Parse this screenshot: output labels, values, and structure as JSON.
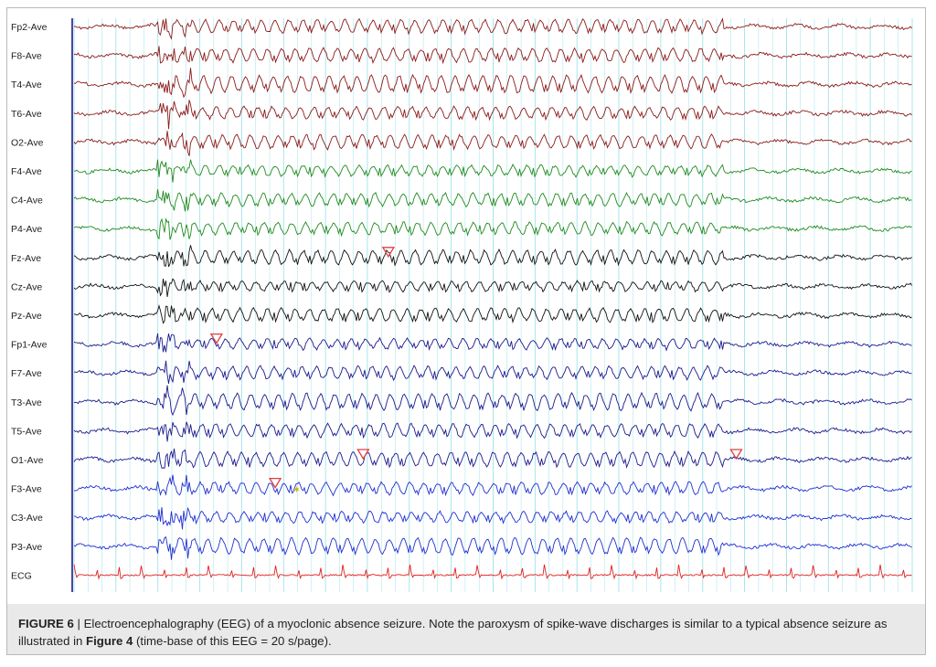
{
  "figure": {
    "caption": {
      "label": "FIGURE 6",
      "separator": " | ",
      "text_before": "Electroencephalography (EEG) of a myoclonic absence seizure. Note the paroxysm of spike-wave discharges is similar to a typical absence seizure as illustrated in ",
      "bold_ref": "Figure 4",
      "text_after": " (time-base of this EEG = 20 s/page)."
    },
    "channels": [
      {
        "label": "Fp2-Ave",
        "color": "#8b1a1a"
      },
      {
        "label": "F8-Ave",
        "color": "#8b1a1a"
      },
      {
        "label": "T4-Ave",
        "color": "#8b1a1a"
      },
      {
        "label": "T6-Ave",
        "color": "#8b1a1a"
      },
      {
        "label": "O2-Ave",
        "color": "#8b1a1a"
      },
      {
        "label": "F4-Ave",
        "color": "#1f8a1f"
      },
      {
        "label": "C4-Ave",
        "color": "#1f8a1f"
      },
      {
        "label": "P4-Ave",
        "color": "#1f8a1f"
      },
      {
        "label": "Fz-Ave",
        "color": "#111111"
      },
      {
        "label": "Cz-Ave",
        "color": "#111111"
      },
      {
        "label": "Pz-Ave",
        "color": "#111111"
      },
      {
        "label": "Fp1-Ave",
        "color": "#1a1a8c"
      },
      {
        "label": "F7-Ave",
        "color": "#1a1a8c"
      },
      {
        "label": "T3-Ave",
        "color": "#1a1a8c"
      },
      {
        "label": "T5-Ave",
        "color": "#1a1a8c"
      },
      {
        "label": "O1-Ave",
        "color": "#1a1a8c"
      },
      {
        "label": "F3-Ave",
        "color": "#1f2fd0"
      },
      {
        "label": "C3-Ave",
        "color": "#1f2fd0"
      },
      {
        "label": "P3-Ave",
        "color": "#1f2fd0"
      },
      {
        "label": "ECG",
        "color": "#e02020"
      }
    ],
    "colors": {
      "grid_line": "#9fe3e8",
      "marker_red": "#e04040",
      "marker_yellow": "#c8b400",
      "axis_line": "#1a1a8c",
      "caption_bg": "#e9e9e9"
    },
    "seizure": {
      "onset_s": 2.2,
      "offset_s": 15.5,
      "page_s": 20,
      "sw_freq_hz": 3
    },
    "markers": [
      {
        "channel": "Fz-Ave",
        "time_s": 7.5,
        "type": "red-triangle"
      },
      {
        "channel": "Fp1-Ave",
        "time_s": 3.4,
        "type": "red-triangle"
      },
      {
        "channel": "O1-Ave",
        "time_s": 6.9,
        "type": "red-triangle"
      },
      {
        "channel": "O1-Ave",
        "time_s": 15.8,
        "type": "red-triangle"
      },
      {
        "channel": "F3-Ave",
        "time_s": 4.8,
        "type": "red-triangle"
      },
      {
        "channel": "F3-Ave",
        "time_s": 5.3,
        "type": "yellow-star"
      }
    ]
  }
}
